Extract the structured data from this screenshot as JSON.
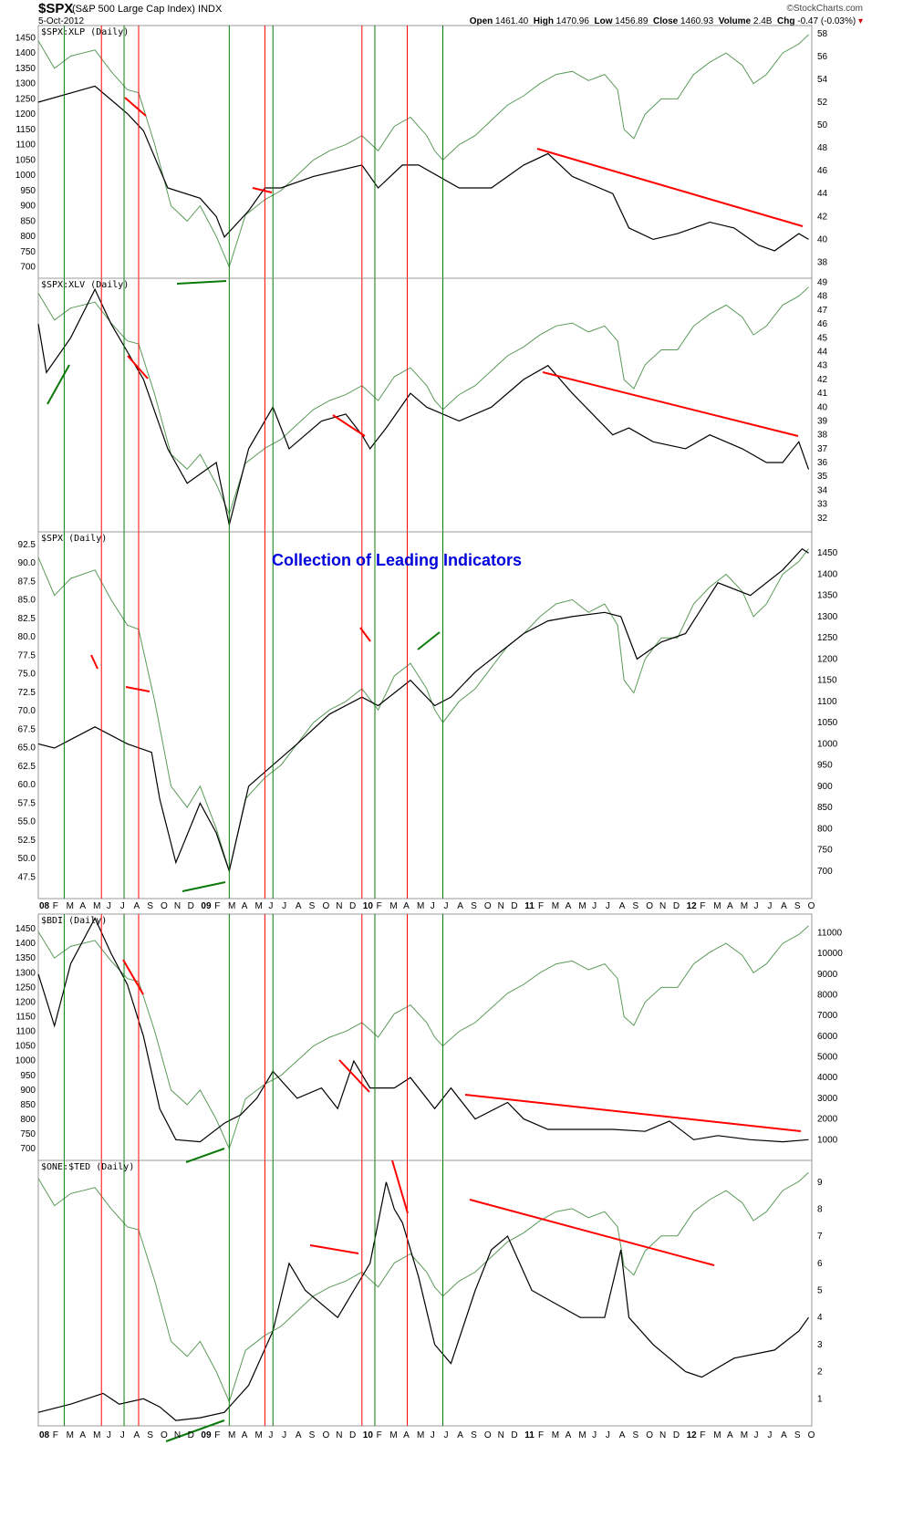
{
  "header": {
    "symbol": "$SPX",
    "description": "(S&P 500 Large Cap Index)",
    "exchange": "INDX",
    "date": "5-Oct-2012",
    "brand": "©StockCharts.com",
    "open_label": "Open",
    "open": "1461.40",
    "high_label": "High",
    "high": "1470.96",
    "low_label": "Low",
    "low": "1456.89",
    "close_label": "Close",
    "close": "1460.93",
    "volume_label": "Volume",
    "volume": "2.4B",
    "chg_label": "Chg",
    "chg": "-0.47 (-0.03%)"
  },
  "colors": {
    "price": "#000000",
    "spx_overlay": "#5a9a5a",
    "bullish_marker": "#0a7a0a",
    "bearish_marker": "#ff0000",
    "overlay_text": "#0000dd"
  },
  "chart_data": [
    {
      "type": "line",
      "title": "$SPX:XLP (Daily)",
      "left_axis_ticks": [
        "1450",
        "1400",
        "1350",
        "1300",
        "1250",
        "1200",
        "1150",
        "1100",
        "1050",
        "1000",
        "950",
        "900",
        "850",
        "800",
        "750",
        "700"
      ],
      "right_axis_ticks": [
        "58",
        "56",
        "54",
        "52",
        "50",
        "48",
        "46",
        "44",
        "42",
        "40",
        "38"
      ],
      "series": [
        {
          "name": "$SPX:XLP",
          "x": [
            2008.0,
            2008.25,
            2008.35,
            2008.55,
            2008.65,
            2008.8,
            2009.0,
            2009.1,
            2009.15,
            2009.3,
            2009.4,
            2009.5,
            2009.7,
            2010.0,
            2010.1,
            2010.25,
            2010.35,
            2010.6,
            2010.8,
            2011.0,
            2011.15,
            2011.3,
            2011.55,
            2011.65,
            2011.8,
            2011.95,
            2012.15,
            2012.3,
            2012.45,
            2012.55,
            2012.7,
            2012.76
          ],
          "values": [
            52.0,
            53.0,
            53.4,
            51.0,
            49.5,
            44.5,
            43.6,
            42.0,
            40.2,
            42.5,
            44.5,
            44.5,
            45.5,
            46.5,
            44.5,
            46.5,
            46.5,
            44.5,
            44.5,
            46.5,
            47.5,
            45.5,
            44.0,
            41.0,
            40.0,
            40.5,
            41.5,
            41.0,
            39.5,
            39.0,
            40.5,
            40.0
          ]
        },
        {
          "name": "$SPX",
          "x": [
            2008.0,
            2008.15,
            2008.35,
            2008.55,
            2008.65,
            2008.8,
            2008.92,
            2009.0,
            2009.1,
            2009.18,
            2009.4,
            2009.6,
            2009.8,
            2010.0,
            2010.15,
            2010.3,
            2010.4,
            2010.5,
            2010.6,
            2010.8,
            2011.0,
            2011.2,
            2011.35,
            2011.5,
            2011.6,
            2011.65,
            2011.75,
            2011.9,
            2012.0,
            2012.2,
            2012.4,
            2012.55,
            2012.7,
            2012.76
          ],
          "values": [
            1450,
            1350,
            1400,
            1260,
            1240,
            1150,
            870,
            900,
            800,
            720,
            920,
            1000,
            1090,
            1130,
            1080,
            1170,
            1200,
            1060,
            1080,
            1180,
            1260,
            1330,
            1340,
            1320,
            1290,
            1120,
            1210,
            1250,
            1260,
            1400,
            1300,
            1370,
            1440,
            1460
          ]
        }
      ]
    },
    {
      "type": "line",
      "title": "$SPX:XLV (Daily)",
      "right_axis_ticks": [
        "49",
        "48",
        "47",
        "46",
        "45",
        "44",
        "43",
        "42",
        "41",
        "40",
        "39",
        "38",
        "37",
        "36",
        "35",
        "34",
        "33",
        "32"
      ],
      "series": [
        {
          "name": "$SPX:XLV",
          "x": [
            2008.0,
            2008.05,
            2008.2,
            2008.35,
            2008.45,
            2008.55,
            2008.65,
            2008.8,
            2008.92,
            2009.1,
            2009.18,
            2009.3,
            2009.45,
            2009.55,
            2009.75,
            2009.9,
            2010.0,
            2010.05,
            2010.15,
            2010.3,
            2010.4,
            2010.6,
            2010.8,
            2011.0,
            2011.15,
            2011.3,
            2011.55,
            2011.65,
            2011.8,
            2012.0,
            2012.15,
            2012.35,
            2012.5,
            2012.6,
            2012.7,
            2012.76
          ],
          "values": [
            46.0,
            42.5,
            45.0,
            48.5,
            46.0,
            44.0,
            42.0,
            37.0,
            34.5,
            36.0,
            31.5,
            37.0,
            40.0,
            37.0,
            39.0,
            39.5,
            38.0,
            37.0,
            38.5,
            41.0,
            40.0,
            39.0,
            40.0,
            42.0,
            43.0,
            41.0,
            38.0,
            38.5,
            37.5,
            37.0,
            38.0,
            37.0,
            36.0,
            36.0,
            37.5,
            35.5
          ]
        }
      ]
    },
    {
      "type": "line",
      "title": "$SPX (Daily)",
      "annotation": "Collection of Leading Indicators",
      "left_axis_ticks": [
        "92.5",
        "90.0",
        "87.5",
        "85.0",
        "82.5",
        "80.0",
        "77.5",
        "75.0",
        "72.5",
        "70.0",
        "67.5",
        "65.0",
        "62.5",
        "60.0",
        "57.5",
        "55.0",
        "52.5",
        "50.0",
        "47.5"
      ],
      "right_axis_ticks": [
        "1450",
        "1400",
        "1350",
        "1300",
        "1250",
        "1200",
        "1150",
        "1100",
        "1050",
        "1000",
        "950",
        "900",
        "850",
        "800",
        "750",
        "700"
      ],
      "series": [
        {
          "name": "$SPX",
          "x": [
            2008.0,
            2008.1,
            2008.2,
            2008.35,
            2008.55,
            2008.7,
            2008.75,
            2008.85,
            2009.0,
            2009.1,
            2009.18,
            2009.3,
            2009.45,
            2009.6,
            2009.8,
            2010.0,
            2010.1,
            2010.2,
            2010.3,
            2010.45,
            2010.55,
            2010.7,
            2010.9,
            2011.0,
            2011.15,
            2011.3,
            2011.5,
            2011.6,
            2011.7,
            2011.85,
            2012.0,
            2012.2,
            2012.4,
            2012.6,
            2012.72,
            2012.76
          ],
          "values": [
            1000,
            990,
            1010,
            1040,
            1000,
            980,
            870,
            720,
            860,
            790,
            700,
            900,
            950,
            1000,
            1070,
            1110,
            1090,
            1120,
            1150,
            1090,
            1110,
            1170,
            1230,
            1260,
            1290,
            1300,
            1310,
            1300,
            1200,
            1240,
            1260,
            1380,
            1350,
            1410,
            1460,
            1450
          ]
        }
      ]
    },
    {
      "type": "line",
      "title": "$BDI (Daily)",
      "left_axis_ticks": [
        "1450",
        "1400",
        "1350",
        "1300",
        "1250",
        "1200",
        "1150",
        "1100",
        "1050",
        "1000",
        "950",
        "900",
        "850",
        "800",
        "750",
        "700"
      ],
      "right_axis_ticks": [
        "11000",
        "10000",
        "9000",
        "8000",
        "7000",
        "6000",
        "5000",
        "4000",
        "3000",
        "2000",
        "1000"
      ],
      "series": [
        {
          "name": "$BDI",
          "x": [
            2008.0,
            2008.1,
            2008.2,
            2008.35,
            2008.45,
            2008.55,
            2008.65,
            2008.75,
            2008.85,
            2009.0,
            2009.15,
            2009.25,
            2009.35,
            2009.45,
            2009.6,
            2009.75,
            2009.85,
            2009.95,
            2010.05,
            2010.2,
            2010.3,
            2010.45,
            2010.55,
            2010.7,
            2010.9,
            2011.0,
            2011.15,
            2011.35,
            2011.55,
            2011.75,
            2011.9,
            2012.05,
            2012.2,
            2012.4,
            2012.6,
            2012.76
          ],
          "values": [
            9000,
            6500,
            9500,
            11700,
            10000,
            8500,
            6000,
            2500,
            1000,
            900,
            1800,
            2200,
            3000,
            4300,
            3000,
            3500,
            2500,
            4800,
            3500,
            3500,
            4000,
            2500,
            3500,
            2000,
            2800,
            2000,
            1500,
            1500,
            1500,
            1400,
            1900,
            1000,
            1200,
            1000,
            900,
            1000
          ]
        }
      ]
    },
    {
      "type": "line",
      "title": "$ONE:$TED (Daily)",
      "right_axis_ticks": [
        "9",
        "8",
        "7",
        "6",
        "5",
        "4",
        "3",
        "2",
        "1"
      ],
      "series": [
        {
          "name": "$ONE:$TED",
          "x": [
            2008.0,
            2008.2,
            2008.3,
            2008.4,
            2008.5,
            2008.65,
            2008.75,
            2008.85,
            2009.0,
            2009.15,
            2009.3,
            2009.45,
            2009.55,
            2009.65,
            2009.75,
            2009.85,
            2009.95,
            2010.05,
            2010.15,
            2010.2,
            2010.25,
            2010.35,
            2010.45,
            2010.55,
            2010.7,
            2010.8,
            2010.9,
            2011.05,
            2011.2,
            2011.35,
            2011.5,
            2011.6,
            2011.65,
            2011.8,
            2012.0,
            2012.1,
            2012.3,
            2012.55,
            2012.7,
            2012.76
          ],
          "values": [
            0.5,
            0.8,
            1.0,
            1.2,
            0.8,
            1.0,
            0.7,
            0.2,
            0.3,
            0.5,
            1.5,
            3.5,
            6.0,
            5.0,
            4.5,
            4.0,
            5.0,
            6.0,
            9.0,
            8.0,
            7.5,
            5.5,
            3.0,
            2.3,
            5.0,
            6.5,
            7.0,
            5.0,
            4.5,
            4.0,
            4.0,
            6.5,
            4.0,
            3.0,
            2.0,
            1.8,
            2.5,
            2.8,
            3.5,
            4.0
          ]
        }
      ]
    }
  ],
  "spx_overlay": {
    "name": "$SPX",
    "x": [
      2008.0,
      2008.1,
      2008.2,
      2008.35,
      2008.45,
      2008.55,
      2008.62,
      2008.72,
      2008.82,
      2008.92,
      2009.0,
      2009.1,
      2009.18,
      2009.28,
      2009.4,
      2009.5,
      2009.6,
      2009.7,
      2009.8,
      2009.9,
      2010.0,
      2010.1,
      2010.2,
      2010.3,
      2010.4,
      2010.45,
      2010.5,
      2010.6,
      2010.7,
      2010.8,
      2010.9,
      2011.0,
      2011.1,
      2011.2,
      2011.3,
      2011.4,
      2011.5,
      2011.58,
      2011.62,
      2011.68,
      2011.75,
      2011.85,
      2011.95,
      2012.05,
      2012.15,
      2012.25,
      2012.35,
      2012.42,
      2012.5,
      2012.6,
      2012.7,
      2012.76
    ],
    "values": [
      1440,
      1350,
      1390,
      1410,
      1340,
      1280,
      1270,
      1100,
      900,
      850,
      900,
      800,
      700,
      870,
      920,
      950,
      1000,
      1050,
      1080,
      1100,
      1130,
      1080,
      1160,
      1190,
      1130,
      1080,
      1050,
      1100,
      1130,
      1180,
      1230,
      1260,
      1300,
      1330,
      1340,
      1310,
      1330,
      1280,
      1150,
      1120,
      1200,
      1250,
      1250,
      1330,
      1370,
      1400,
      1360,
      1300,
      1330,
      1400,
      1430,
      1460
    ]
  },
  "markers": {
    "green_verticals": [
      2008.16,
      2008.53,
      2009.18,
      2009.45,
      2010.08,
      2010.5
    ],
    "red_verticals": [
      2008.39,
      2008.62,
      2009.4,
      2010.0,
      2010.28
    ]
  },
  "x_axis": {
    "labels": [
      "08",
      "F",
      "M",
      "A",
      "M",
      "J",
      "J",
      "A",
      "S",
      "O",
      "N",
      "D",
      "09",
      "F",
      "M",
      "A",
      "M",
      "J",
      "J",
      "A",
      "S",
      "O",
      "N",
      "D",
      "10",
      "F",
      "M",
      "A",
      "M",
      "J",
      "J",
      "A",
      "S",
      "O",
      "N",
      "D",
      "11",
      "F",
      "M",
      "A",
      "M",
      "J",
      "J",
      "A",
      "S",
      "O",
      "N",
      "D",
      "12",
      "F",
      "M",
      "A",
      "M",
      "J",
      "J",
      "A",
      "S",
      "O"
    ]
  }
}
